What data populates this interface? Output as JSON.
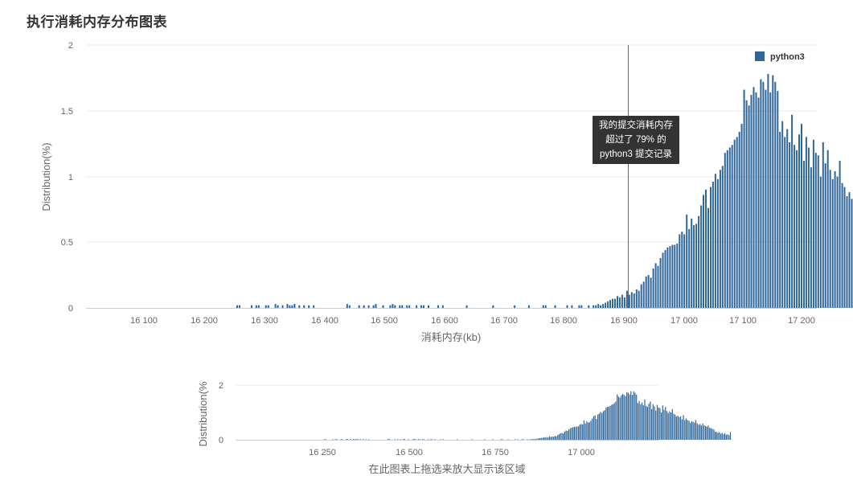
{
  "title": "执行消耗内存分布图表",
  "colors": {
    "bar": "#2f6699",
    "grid": "#e8e8e8",
    "axis": "#cccccc",
    "tooltip_bg": "#333333"
  },
  "legend": {
    "label": "python3",
    "icon": "square-swatch-icon"
  },
  "tooltip": {
    "line1": "我的提交消耗内存",
    "line2": "超过了 79% 的",
    "line3": "python3 提交记录"
  },
  "main_chart": {
    "y_axis_title": "Distribution(%)",
    "x_axis_title": "消耗内存(kb)",
    "y_ticks": [
      "0",
      "0.5",
      "1",
      "1.5",
      "2"
    ],
    "x_ticks": [
      "16 100",
      "16 200",
      "16 300",
      "16 400",
      "16 500",
      "16 600",
      "16 700",
      "16 800",
      "16 900",
      "17 000",
      "17 100",
      "17 200"
    ]
  },
  "navigator": {
    "y_axis_title": "Distribution(%",
    "y_ticks": [
      "0",
      "2"
    ],
    "x_ticks": [
      "16 250",
      "16 500",
      "16 750",
      "17 000"
    ],
    "caption": "在此图表上拖选来放大显示该区域"
  },
  "chart_data": {
    "type": "bar",
    "title": "执行消耗内存分布图表",
    "xlabel": "消耗内存(kb)",
    "ylabel": "Distribution(%)",
    "xlim": [
      16000,
      17212
    ],
    "ylim": [
      0,
      2
    ],
    "series": [
      {
        "name": "python3",
        "bin_start": 16256,
        "bin_width": 4,
        "values": [
          0.02,
          0.02,
          0,
          0,
          0,
          0,
          0.02,
          0,
          0.02,
          0.02,
          0,
          0,
          0.02,
          0.02,
          0,
          0,
          0.03,
          0.02,
          0,
          0.02,
          0,
          0.03,
          0.02,
          0.02,
          0.03,
          0,
          0.02,
          0,
          0.02,
          0,
          0.02,
          0,
          0.02,
          0,
          0,
          0,
          0,
          0,
          0,
          0,
          0,
          0,
          0,
          0,
          0,
          0,
          0.03,
          0.02,
          0,
          0,
          0,
          0.02,
          0,
          0.02,
          0,
          0.02,
          0,
          0.02,
          0.03,
          0,
          0,
          0.02,
          0,
          0,
          0.02,
          0.03,
          0.02,
          0,
          0.02,
          0.02,
          0,
          0.02,
          0.02,
          0,
          0,
          0.02,
          0,
          0.02,
          0.02,
          0,
          0.02,
          0,
          0,
          0,
          0.02,
          0,
          0.02,
          0,
          0,
          0,
          0,
          0,
          0,
          0,
          0,
          0,
          0.02,
          0,
          0,
          0,
          0,
          0,
          0,
          0,
          0,
          0,
          0,
          0.02,
          0,
          0,
          0,
          0,
          0,
          0,
          0,
          0,
          0.02,
          0,
          0,
          0,
          0,
          0,
          0.02,
          0,
          0,
          0,
          0,
          0,
          0.02,
          0.02,
          0,
          0,
          0,
          0.02,
          0,
          0,
          0,
          0,
          0.02,
          0,
          0.02,
          0,
          0,
          0.02,
          0.02,
          0,
          0,
          0.02,
          0,
          0.02,
          0.02,
          0.03,
          0.02,
          0.03,
          0.04,
          0.05,
          0.06,
          0.07,
          0.07,
          0.09,
          0.08,
          0.1,
          0.08,
          0.13,
          0.1,
          0.12,
          0.11,
          0.14,
          0.13,
          0.18,
          0.2,
          0.24,
          0.25,
          0.23,
          0.3,
          0.34,
          0.32,
          0.38,
          0.42,
          0.44,
          0.46,
          0.47,
          0.48,
          0.48,
          0.49,
          0.56,
          0.58,
          0.56,
          0.71,
          0.6,
          0.68,
          0.63,
          0.64,
          0.7,
          0.78,
          0.86,
          0.9,
          0.76,
          0.92,
          0.96,
          1.02,
          0.98,
          1.05,
          1.08,
          1.18,
          1.2,
          1.22,
          1.24,
          1.28,
          1.3,
          1.34,
          1.4,
          1.66,
          1.58,
          1.54,
          1.62,
          1.68,
          1.64,
          1.6,
          1.74,
          1.72,
          1.66,
          1.78,
          1.64,
          1.77,
          1.72,
          1.65,
          1.34,
          1.42,
          1.3,
          1.36,
          1.26,
          1.47,
          1.24,
          1.2,
          1.32,
          1.4,
          1.12,
          1.3,
          1.22,
          1.07,
          1.28,
          1.18,
          1.16,
          1.0,
          1.26,
          1.1,
          1.2,
          1.05,
          0.98,
          1.04,
          1.0,
          1.12,
          0.95,
          0.92,
          0.85,
          0.88,
          0.83,
          0.86,
          0.75,
          0.9,
          0.72,
          0.78,
          0.72,
          0.7,
          0.62,
          0.68,
          0.65,
          0.63,
          0.72,
          0.6,
          0.55,
          0.58,
          0.52,
          0.6,
          0.53,
          0.5,
          0.48,
          0.52,
          0.44,
          0.42,
          0.4,
          0.38,
          0.3,
          0.28,
          0.26,
          0.28,
          0.22,
          0.26,
          0.2,
          0.24,
          0.18,
          0.2,
          0.17,
          0.28
        ]
      }
    ]
  }
}
